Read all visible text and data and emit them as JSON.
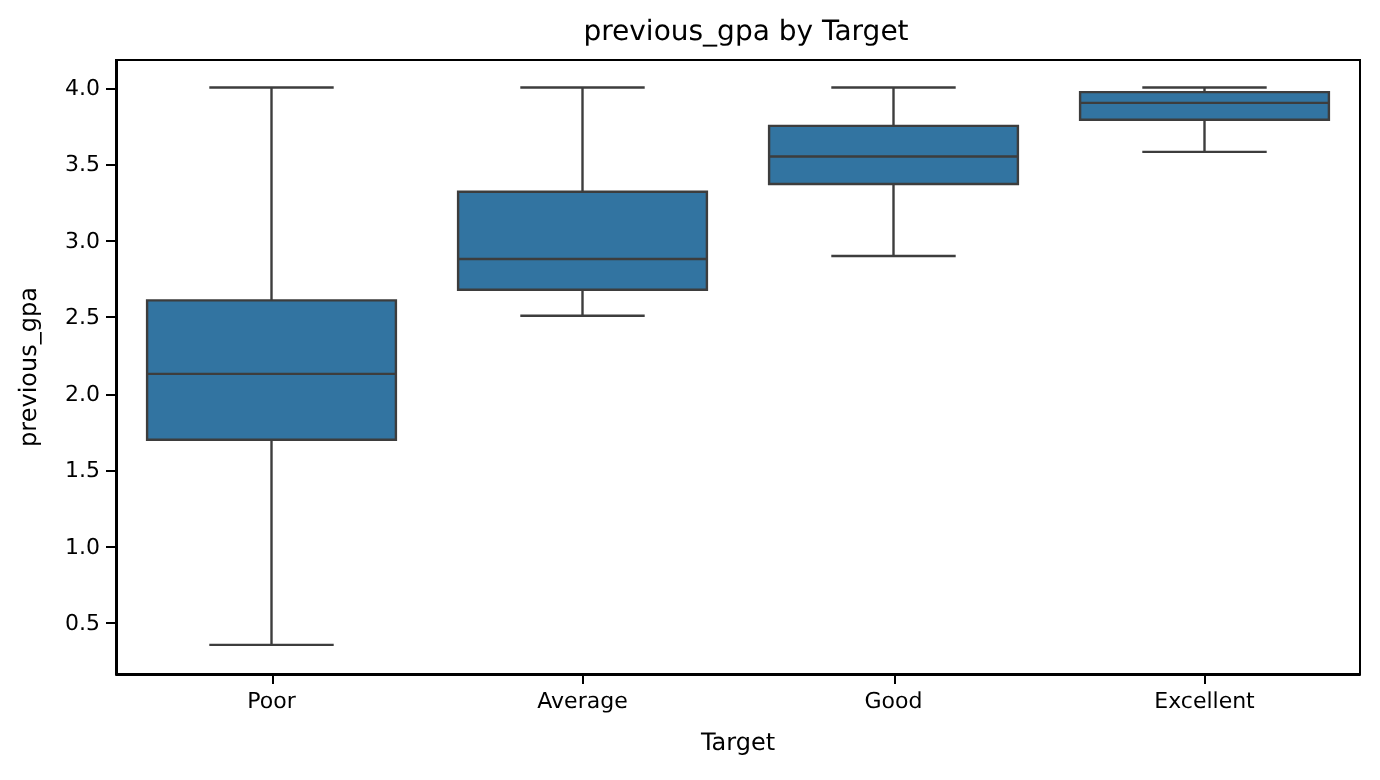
{
  "chart_data": {
    "type": "box",
    "title": "previous_gpa by Target",
    "xlabel": "Target",
    "ylabel": "previous_gpa",
    "categories": [
      "Poor",
      "Average",
      "Good",
      "Excellent"
    ],
    "color": "#3274a1",
    "boxes": [
      {
        "low": 0.36,
        "q1": 1.7,
        "median": 2.13,
        "q3": 2.61,
        "high": 4.0
      },
      {
        "low": 2.51,
        "q1": 2.68,
        "median": 2.88,
        "q3": 3.32,
        "high": 4.0
      },
      {
        "low": 2.9,
        "q1": 3.37,
        "median": 3.55,
        "q3": 3.75,
        "high": 4.0
      },
      {
        "low": 3.58,
        "q1": 3.79,
        "median": 3.9,
        "q3": 3.97,
        "high": 4.0
      }
    ],
    "ylim": [
      0.17,
      4.18
    ],
    "yticks": [
      0.5,
      {
        "value": 1,
        "label": "1.0"
      },
      1.5,
      {
        "value": 2,
        "label": "2.0"
      },
      2.5,
      {
        "value": 3,
        "label": "3.0"
      },
      3.5,
      {
        "value": 4,
        "label": "4.0"
      }
    ],
    "grid": false
  }
}
